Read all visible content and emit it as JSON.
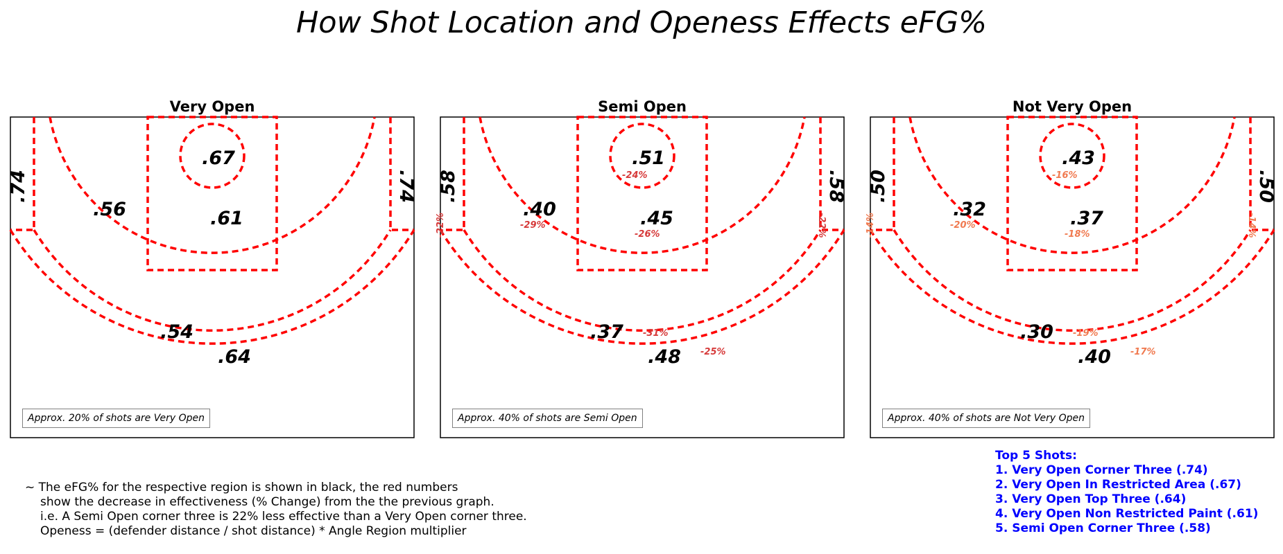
{
  "title": "How Shot Location and Openess Effects eFG%",
  "colors": {
    "court_lines": "#ff0000",
    "value_text": "#000000",
    "change_dark": "#d63a3a",
    "change_light": "#f07a50",
    "top_shots": "#0000ff"
  },
  "chart_data": [
    {
      "type": "court-zone-map",
      "title": "Very Open",
      "share_note": "Approx. 20% of shots are Very Open",
      "zones": [
        {
          "zone": "restricted-area",
          "value": ".67",
          "change": ""
        },
        {
          "zone": "paint",
          "value": ".61",
          "change": ""
        },
        {
          "zone": "midrange",
          "value": ".56",
          "change": ""
        },
        {
          "zone": "long-two",
          "value": ".54",
          "change": ""
        },
        {
          "zone": "above-break-three",
          "value": ".64",
          "change": ""
        },
        {
          "zone": "corner-three-left",
          "value": ".74",
          "change": ""
        },
        {
          "zone": "corner-three-right",
          "value": ".74",
          "change": ""
        }
      ]
    },
    {
      "type": "court-zone-map",
      "title": "Semi Open",
      "share_note": "Approx. 40% of shots are Semi Open",
      "zones": [
        {
          "zone": "restricted-area",
          "value": ".51",
          "change": "-24%"
        },
        {
          "zone": "paint",
          "value": ".45",
          "change": "-26%"
        },
        {
          "zone": "midrange",
          "value": ".40",
          "change": "-29%"
        },
        {
          "zone": "long-two",
          "value": ".37",
          "change": "-31%"
        },
        {
          "zone": "above-break-three",
          "value": ".48",
          "change": "-25%"
        },
        {
          "zone": "corner-three-left",
          "value": ".58",
          "change": "-22%"
        },
        {
          "zone": "corner-three-right",
          "value": ".58",
          "change": "-22%"
        }
      ]
    },
    {
      "type": "court-zone-map",
      "title": "Not Very Open",
      "share_note": "Approx. 40% of shots are Not Very Open",
      "zones": [
        {
          "zone": "restricted-area",
          "value": ".43",
          "change": "-16%"
        },
        {
          "zone": "paint",
          "value": ".37",
          "change": "-18%"
        },
        {
          "zone": "midrange",
          "value": ".32",
          "change": "-20%"
        },
        {
          "zone": "long-two",
          "value": ".30",
          "change": "-19%"
        },
        {
          "zone": "above-break-three",
          "value": ".40",
          "change": "-17%"
        },
        {
          "zone": "corner-three-left",
          "value": ".50",
          "change": "-14%"
        },
        {
          "zone": "corner-three-right",
          "value": ".50",
          "change": "-14%"
        }
      ]
    }
  ],
  "footnote": [
    "~ The eFG% for the respective region is shown in black,  the red numbers",
    "show the decrease in effectiveness (% Change) from the the previous graph.",
    "i.e. A Semi Open corner three is 22% less effective than a Very Open corner three.",
    "Openess = (defender distance / shot distance) * Angle Region multiplier"
  ],
  "top_shots": {
    "heading": "Top 5 Shots:",
    "items": [
      "1. Very Open Corner Three (.74)",
      "2. Very Open In Restricted         Area (.67)",
      "3. Very Open Top Three (.64)",
      "4. Very Open Non Restricted Paint (.61)",
      "5. Semi Open Corner Three (.58)"
    ]
  }
}
